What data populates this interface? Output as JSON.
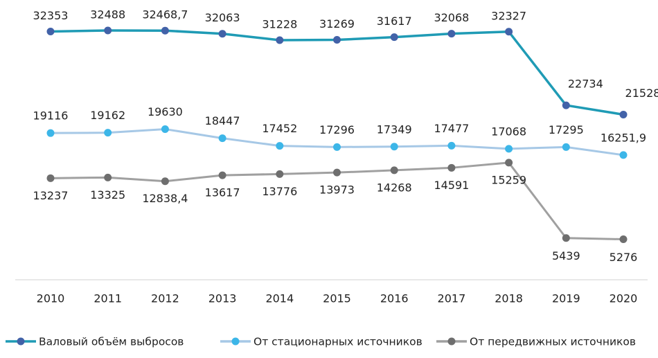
{
  "chart_data": {
    "type": "line",
    "categories": [
      "2010",
      "2011",
      "2012",
      "2013",
      "2014",
      "2015",
      "2016",
      "2017",
      "2018",
      "2019",
      "2020"
    ],
    "series": [
      {
        "name": "Валовый объём выбросов",
        "color": "#1f9bb5",
        "marker_color": "#4262a8",
        "values": [
          32353,
          32488,
          32468.7,
          32063,
          31228,
          31269,
          31617,
          32068,
          32327,
          22734,
          21528
        ],
        "value_labels": [
          "32353",
          "32488",
          "32468,7",
          "32063",
          "31228",
          "31269",
          "31617",
          "32068",
          "32327",
          "22734",
          "21528"
        ]
      },
      {
        "name": "От стационарных источников",
        "color": "#a6c8e6",
        "marker_color": "#3cb6e8",
        "values": [
          19116,
          19162,
          19630,
          18447,
          17452,
          17296,
          17349,
          17477,
          17068,
          17295,
          16251.9
        ],
        "value_labels": [
          "19116",
          "19162",
          "19630",
          "18447",
          "17452",
          "17296",
          "17349",
          "17477",
          "17068",
          "17295",
          "16251,9"
        ]
      },
      {
        "name": "От передвижных источников",
        "color": "#a0a0a0",
        "marker_color": "#6e6e6e",
        "values": [
          13237,
          13325,
          12838.4,
          13617,
          13776,
          13973,
          14268,
          14591,
          15259,
          5439,
          5276
        ],
        "value_labels": [
          "13237",
          "13325",
          "12838,4",
          "13617",
          "13776",
          "13973",
          "14268",
          "14591",
          "15259",
          "5439",
          "5276"
        ]
      }
    ],
    "legend": "bottom"
  }
}
